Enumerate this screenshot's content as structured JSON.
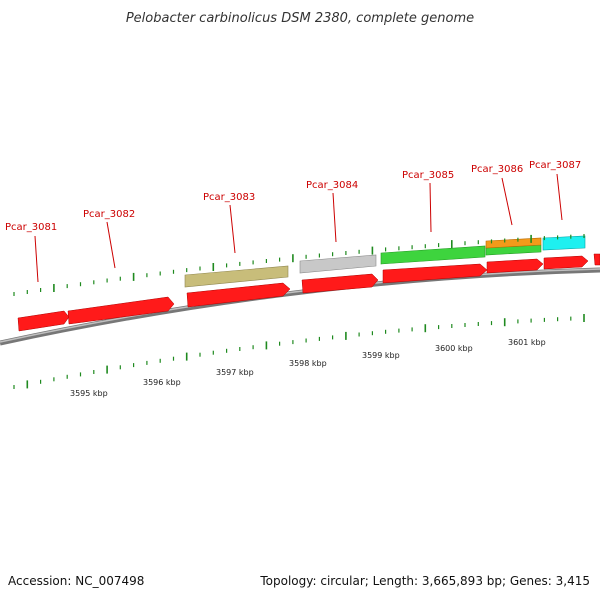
{
  "title": "Pelobacter carbinolicus DSM 2380, complete genome",
  "footer": {
    "accession": "Accession: NC_007498",
    "summary": "Topology: circular; Length: 3,665,893 bp; Genes: 3,415"
  },
  "colors": {
    "forward_gene": "#ff0000",
    "rna": "#c8bd7a",
    "pseudo": "#c0c0c0",
    "green": "#3ed43e",
    "orange": "#f39a1a",
    "cyan": "#1ef0f0",
    "backbone": "#8a8a8a",
    "tick": "#1f8a1f",
    "label": "#cc0000"
  },
  "gene_labels": [
    "Pcar_3081",
    "Pcar_3082",
    "Pcar_3083",
    "Pcar_3084",
    "Pcar_3085",
    "Pcar_3086",
    "Pcar_3087"
  ],
  "kbp_labels": [
    "3595 kbp",
    "3596 kbp",
    "3597 kbp",
    "3598 kbp",
    "3599 kbp",
    "3600 kbp",
    "3601 kbp"
  ]
}
